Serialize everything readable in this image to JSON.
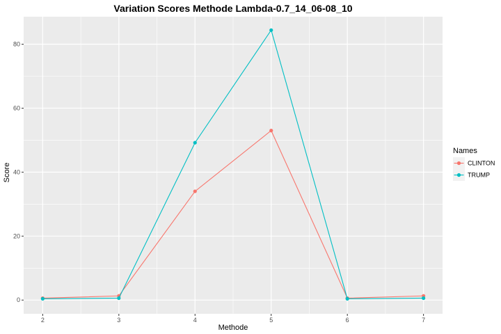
{
  "chart_data": {
    "type": "line",
    "title": "Variation Scores Methode Lambda-0.7_14_06-08_10",
    "xlabel": "Methode",
    "ylabel": "Score",
    "x": [
      2,
      3,
      4,
      5,
      6,
      7
    ],
    "x_ticks": [
      "2",
      "3",
      "4",
      "5",
      "6",
      "7"
    ],
    "y_ticks": [
      "0",
      "20",
      "40",
      "60",
      "80"
    ],
    "xlim": [
      1.75,
      7.25
    ],
    "ylim": [
      -4.3,
      88.6
    ],
    "grid": true,
    "legend": {
      "title": "Names",
      "position": "right"
    },
    "series": [
      {
        "name": "CLINTON",
        "color": "#F8766D",
        "values": [
          0.6,
          1.3,
          34.0,
          53.0,
          0.6,
          1.3
        ]
      },
      {
        "name": "TRUMP",
        "color": "#00BFC4",
        "values": [
          0.4,
          0.6,
          49.2,
          84.4,
          0.4,
          0.6
        ]
      }
    ]
  }
}
